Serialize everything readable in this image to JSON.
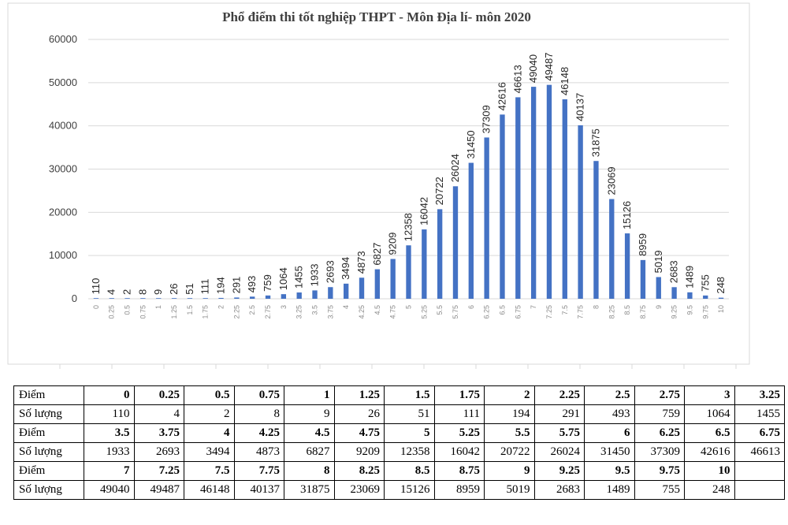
{
  "chart_data": {
    "type": "bar",
    "title": "Phổ điểm thi tốt nghiệp THPT - Môn Địa lí- môn 2020",
    "xlabel": "",
    "ylabel": "",
    "ylim": [
      0,
      60000
    ],
    "yticks": [
      0,
      10000,
      20000,
      30000,
      40000,
      50000,
      60000
    ],
    "grid": true,
    "bar_color": "#4472c4",
    "categories": [
      "0",
      "0.25",
      "0.5",
      "0.75",
      "1",
      "1.25",
      "1.5",
      "1.75",
      "2",
      "2.25",
      "2.5",
      "2.75",
      "3",
      "3.25",
      "3.5",
      "3.75",
      "4",
      "4.25",
      "4.5",
      "4.75",
      "5",
      "5.25",
      "5.5",
      "5.75",
      "6",
      "6.25",
      "6.5",
      "6.75",
      "7",
      "7.25",
      "7.5",
      "7.75",
      "8",
      "8.25",
      "8.5",
      "8.75",
      "9",
      "9.25",
      "9.5",
      "9.75",
      "10"
    ],
    "values": [
      110,
      4,
      2,
      8,
      9,
      26,
      51,
      111,
      194,
      291,
      493,
      759,
      1064,
      1455,
      1933,
      2693,
      3494,
      4873,
      6827,
      9209,
      12358,
      16042,
      20722,
      26024,
      31450,
      37309,
      42616,
      46613,
      49040,
      49487,
      46148,
      40137,
      31875,
      23069,
      15126,
      8959,
      5019,
      2683,
      1489,
      755,
      248
    ]
  },
  "table": {
    "score_label": "Điểm",
    "count_label": "Số lượng",
    "rows": [
      {
        "scores": [
          "0",
          "0.25",
          "0.5",
          "0.75",
          "1",
          "1.25",
          "1.5",
          "1.75",
          "2",
          "2.25",
          "2.5",
          "2.75",
          "3",
          "3.25"
        ],
        "counts": [
          "110",
          "4",
          "2",
          "8",
          "9",
          "26",
          "51",
          "111",
          "194",
          "291",
          "493",
          "759",
          "1064",
          "1455"
        ]
      },
      {
        "scores": [
          "3.5",
          "3.75",
          "4",
          "4.25",
          "4.5",
          "4.75",
          "5",
          "5.25",
          "5.5",
          "5.75",
          "6",
          "6.25",
          "6.5",
          "6.75"
        ],
        "counts": [
          "1933",
          "2693",
          "3494",
          "4873",
          "6827",
          "9209",
          "12358",
          "16042",
          "20722",
          "26024",
          "31450",
          "37309",
          "42616",
          "46613"
        ]
      },
      {
        "scores": [
          "7",
          "7.25",
          "7.5",
          "7.75",
          "8",
          "8.25",
          "8.5",
          "8.75",
          "9",
          "9.25",
          "9.5",
          "9.75",
          "10",
          ""
        ],
        "counts": [
          "49040",
          "49487",
          "46148",
          "40137",
          "31875",
          "23069",
          "15126",
          "8959",
          "5019",
          "2683",
          "1489",
          "755",
          "248",
          ""
        ]
      }
    ]
  }
}
